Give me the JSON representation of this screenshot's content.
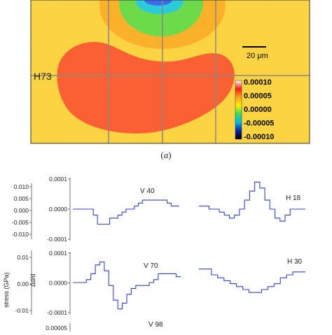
{
  "panel_a": {
    "scale_bar_label": "20 μm",
    "line_label": "H73",
    "colorbar": {
      "colors": [
        "#ffffff",
        "#ff1a1a",
        "#ffa020",
        "#ffee00",
        "#33dd66",
        "#00bbee",
        "#0022aa",
        "#000000"
      ],
      "tick_labels": [
        "0.00010",
        "0.00005",
        "0.00000",
        "-0.00005",
        "-0.00010"
      ]
    },
    "field_colors": {
      "background": "#ffd53a",
      "lobe": "#ff5a2a",
      "orange": "#ffb020",
      "green": "#66dd44",
      "cyan": "#22ccdd",
      "blue": "#3366ee",
      "grid": "#888888"
    },
    "caption_letter": "a"
  },
  "panel_b": {
    "stress_axis_label": "stress (GPa)",
    "strain_axis_label": "Δd/d",
    "line_color": "#3344cc",
    "stress_ticks_top": [
      "0.010",
      "0.005",
      "0.000",
      "-0.005",
      "-0.010"
    ],
    "stress_ticks_mid": [
      "0.01",
      "0.00",
      "-0.01"
    ],
    "strain_ticks_top": [
      "0.0001",
      "0.0000",
      "-0.0001"
    ],
    "strain_ticks_mid": [
      "0.0001",
      "0.0000",
      "-0.0001"
    ],
    "strain_tick_bottom": "0.00005",
    "profile_labels": {
      "v40": "V 40",
      "h18": "H 18",
      "v70": "V 70",
      "h30": "H 30",
      "v98": "V 98"
    }
  },
  "chart_data": [
    {
      "type": "line",
      "title": "V 40",
      "ylabel": "Δd/d",
      "ylim": [
        -0.0001,
        0.0001
      ],
      "y": [
        0.0,
        0.0,
        0.0,
        0.0,
        0.0,
        -2e-05,
        -5e-05,
        -5e-05,
        -5e-05,
        -3e-05,
        -3e-05,
        -2e-05,
        -1e-05,
        0.0,
        0.0,
        1e-05,
        2e-05,
        3e-05,
        3e-05,
        3e-05,
        3e-05,
        3e-05,
        3e-05,
        2e-05,
        1e-05,
        1e-05
      ]
    },
    {
      "type": "line",
      "title": "H 18",
      "ylim": [
        -0.0001,
        0.0001
      ],
      "y": [
        1e-05,
        1e-05,
        0.0,
        0.0,
        -1e-05,
        -2e-05,
        -3e-05,
        -2e-05,
        0.0,
        3e-05,
        6e-05,
        9e-05,
        7e-05,
        3e-05,
        0.0,
        -3e-05,
        -4e-05,
        -2e-05,
        0.0,
        0.0,
        0.0
      ]
    },
    {
      "type": "line",
      "title": "V 70",
      "ylabel": "Δd/d",
      "ylim": [
        -0.0001,
        0.0001
      ],
      "y": [
        0.0,
        0.0,
        0.0,
        1e-05,
        3e-05,
        6e-05,
        7e-05,
        4e-05,
        -1e-05,
        -6e-05,
        -9e-05,
        -7e-05,
        -4e-05,
        -2e-05,
        -1e-05,
        -1e-05,
        -1e-05,
        0.0,
        1e-05,
        3e-05,
        3e-05,
        3e-05,
        3e-05,
        2e-05
      ]
    },
    {
      "type": "line",
      "title": "H 30",
      "ylim": [
        -0.0001,
        0.0001
      ],
      "y": [
        2e-05,
        2e-05,
        0.0,
        -1e-05,
        -2e-05,
        -3e-05,
        -4e-05,
        -5e-05,
        -6e-05,
        -6e-05,
        -5e-05,
        -4e-05,
        -3e-05,
        -1e-05,
        0.0,
        1e-05,
        1e-05
      ]
    }
  ]
}
